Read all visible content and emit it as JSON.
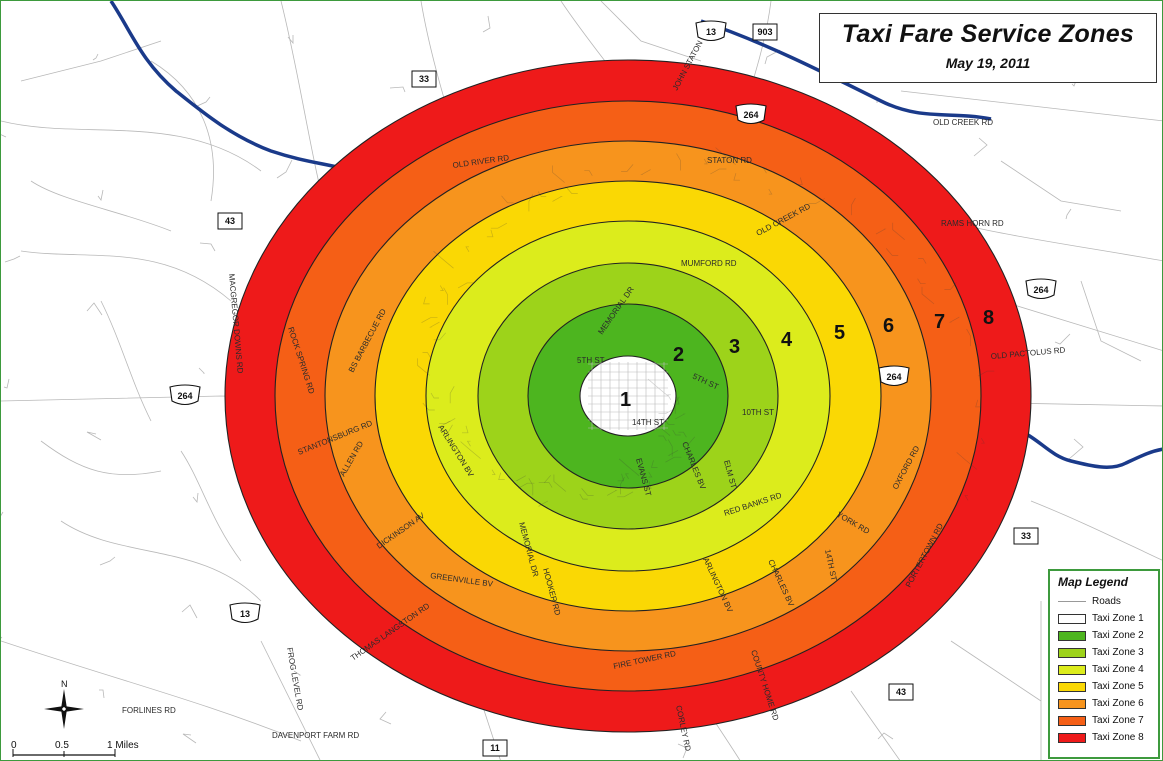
{
  "title": "Taxi Fare Service Zones",
  "date": "May 19, 2011",
  "zones": [
    {
      "label": "1",
      "fill": "#ffffff"
    },
    {
      "label": "2",
      "fill": "#4db51f"
    },
    {
      "label": "3",
      "fill": "#9dd31a"
    },
    {
      "label": "4",
      "fill": "#dcec1c"
    },
    {
      "label": "5",
      "fill": "#fad804"
    },
    {
      "label": "6",
      "fill": "#f7941d"
    },
    {
      "label": "7",
      "fill": "#f55f16"
    },
    {
      "label": "8",
      "fill": "#ee1a1a"
    }
  ],
  "legend": {
    "title": "Map Legend",
    "roads_label": "Roads",
    "items": [
      "Taxi Zone 1",
      "Taxi Zone 2",
      "Taxi Zone 3",
      "Taxi Zone 4",
      "Taxi Zone 5",
      "Taxi Zone 6",
      "Taxi Zone 7",
      "Taxi Zone 8"
    ]
  },
  "scale_bar": {
    "ticks": [
      "0",
      "0.5",
      "1 Miles"
    ]
  },
  "north_label": "N",
  "road_labels": [
    "JOHN STATON RD",
    "OLD CREEK RD",
    "STATON RD",
    "OLD RIVER RD",
    "RAMS HORN RD",
    "OLD CREEK RD",
    "MUMFORD RD",
    "MEMORIAL DR",
    "MACGREGOR DOWNS RD",
    "ROCK SPRING RD",
    "BS BARBECUE RD",
    "5TH ST",
    "5TH ST",
    "10TH ST",
    "14TH ST",
    "OLD PACTOLUS RD",
    "STANTONSBURG RD",
    "ARLINGTON BV",
    "ALLEN RD",
    "CHARLES BV",
    "EVANS ST",
    "ELM ST",
    "RED BANKS RD",
    "OXFORD RD",
    "YORK RD",
    "DICKINSON AV",
    "MEMORIAL DR",
    "HOOKER RD",
    "ARLINGTON BV",
    "CHARLES BV",
    "14TH ST",
    "GREENVILLE BV",
    "PORTERTOWN RD",
    "THOMAS LANGSTON RD",
    "FROG LEVEL RD",
    "FIRE TOWER RD",
    "COUNTY HOME RD",
    "CORLEY RD",
    "FORLINES RD",
    "DAVENPORT FARM RD"
  ],
  "shields": [
    "13",
    "903",
    "33",
    "264",
    "43",
    "264",
    "264",
    "264",
    "33",
    "13",
    "43",
    "11"
  ]
}
